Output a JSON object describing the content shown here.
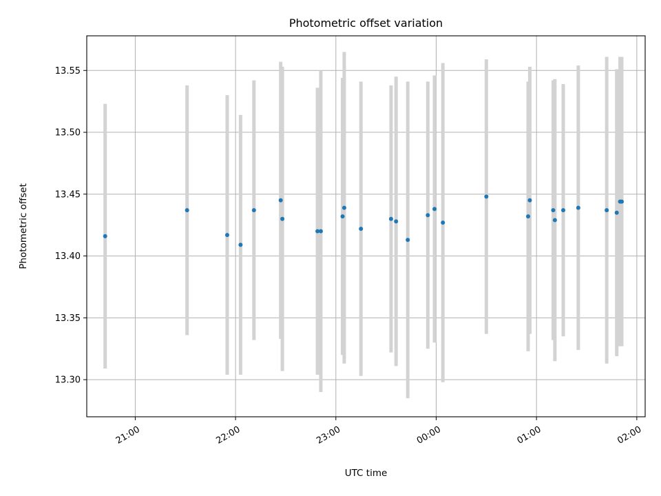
{
  "chart_data": {
    "type": "scatter",
    "title": "Photometric offset variation",
    "xlabel": "UTC time",
    "ylabel": "Photometric offset",
    "x_tick_labels": [
      "21:00",
      "22:00",
      "23:00",
      "00:00",
      "01:00",
      "02:00"
    ],
    "y_tick_labels": [
      "13.30",
      "13.35",
      "13.40",
      "13.45",
      "13.50",
      "13.55"
    ],
    "y_ticks": [
      13.3,
      13.35,
      13.4,
      13.45,
      13.5,
      13.55
    ],
    "ylim": [
      13.27,
      13.578
    ],
    "xlim": [
      "20:31",
      "02:05"
    ],
    "grid": true,
    "colors": {
      "points": "#1f77b4",
      "error_bars": "#d3d3d3",
      "grid": "#b0b0b0"
    },
    "series": [
      {
        "points": [
          {
            "x": "20:42",
            "y": 13.416,
            "err": 0.107
          },
          {
            "x": "21:31",
            "y": 13.437,
            "err": 0.101
          },
          {
            "x": "21:55",
            "y": 13.417,
            "err": 0.113
          },
          {
            "x": "22:03",
            "y": 13.409,
            "err": 0.105
          },
          {
            "x": "22:11",
            "y": 13.437,
            "err": 0.105
          },
          {
            "x": "22:27",
            "y": 13.445,
            "err": 0.112
          },
          {
            "x": "22:28",
            "y": 13.43,
            "err": 0.123
          },
          {
            "x": "22:49",
            "y": 13.42,
            "err": 0.116
          },
          {
            "x": "22:51",
            "y": 13.42,
            "err": 0.13
          },
          {
            "x": "23:04",
            "y": 13.432,
            "err": 0.112
          },
          {
            "x": "23:05",
            "y": 13.439,
            "err": 0.126
          },
          {
            "x": "23:15",
            "y": 13.422,
            "err": 0.119
          },
          {
            "x": "23:33",
            "y": 13.43,
            "err": 0.108
          },
          {
            "x": "23:36",
            "y": 13.428,
            "err": 0.117
          },
          {
            "x": "23:43",
            "y": 13.413,
            "err": 0.128
          },
          {
            "x": "23:55",
            "y": 13.433,
            "err": 0.108
          },
          {
            "x": "23:59",
            "y": 13.438,
            "err": 0.108
          },
          {
            "x": "00:04",
            "y": 13.427,
            "err": 0.129
          },
          {
            "x": "00:30",
            "y": 13.448,
            "err": 0.111
          },
          {
            "x": "00:55",
            "y": 13.432,
            "err": 0.109
          },
          {
            "x": "00:56",
            "y": 13.445,
            "err": 0.108
          },
          {
            "x": "01:10",
            "y": 13.437,
            "err": 0.105
          },
          {
            "x": "01:11",
            "y": 13.429,
            "err": 0.114
          },
          {
            "x": "01:16",
            "y": 13.437,
            "err": 0.102
          },
          {
            "x": "01:25",
            "y": 13.439,
            "err": 0.115
          },
          {
            "x": "01:42",
            "y": 13.437,
            "err": 0.124
          },
          {
            "x": "01:48",
            "y": 13.435,
            "err": 0.116
          },
          {
            "x": "01:50",
            "y": 13.444,
            "err": 0.117
          },
          {
            "x": "01:51",
            "y": 13.444,
            "err": 0.117
          }
        ]
      }
    ]
  }
}
